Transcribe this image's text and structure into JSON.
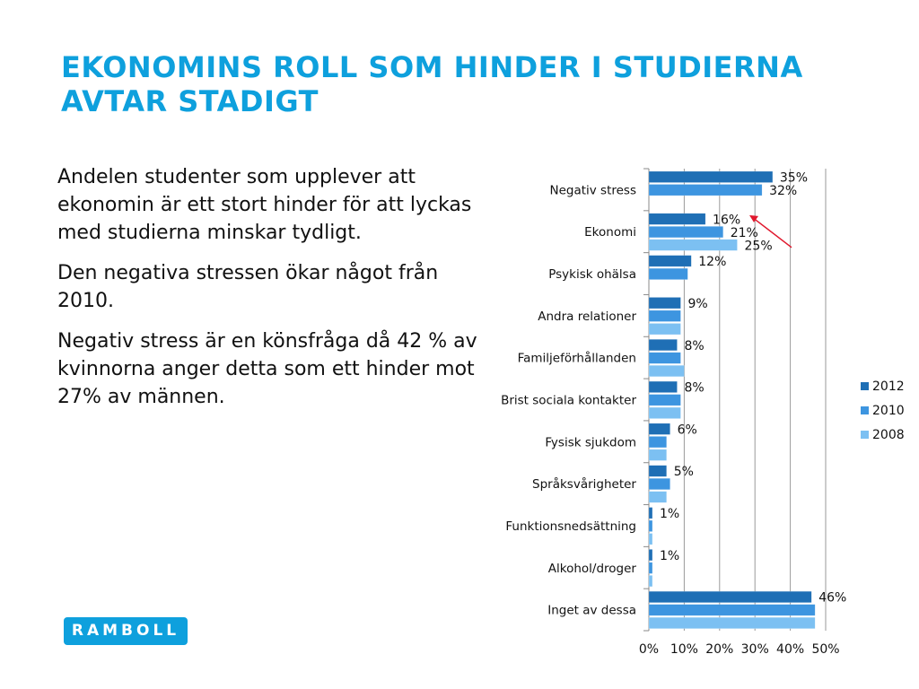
{
  "slide": {
    "title_lines": [
      "EKONOMINS ROLL SOM HINDER I STUDIERNA",
      "AVTAR STADIGT"
    ],
    "paragraphs": [
      "Andelen studenter som upplever att ekonomin är ett stort hinder för att lyckas med studierna minskar tydligt.",
      "Den negativa stressen ökar något från 2010.",
      "Negativ stress är en könsfråga då 42 % av kvinnorna anger detta som ett hinder mot 27% av männen."
    ],
    "logo_text": "RAMBOLL"
  },
  "colors": {
    "title": "#0ea0dd",
    "s2012": "#1f6fb5",
    "s2010": "#3d95e0",
    "s2008": "#7cc0f2",
    "arrow": "#e0182d"
  },
  "chart_data": {
    "type": "bar",
    "orientation": "horizontal",
    "title": "",
    "xlabel": "",
    "ylabel": "",
    "categories": [
      "Negativ stress",
      "Ekonomi",
      "Psykisk ohälsa",
      "Andra relationer",
      "Familjeförhållanden",
      "Brist sociala kontakter",
      "Fysisk sjukdom",
      "Språksvårigheter",
      "Funktionsnedsättning",
      "Alkohol/droger",
      "Inget av dessa"
    ],
    "series": [
      {
        "name": "2012",
        "values": [
          35,
          16,
          12,
          9,
          8,
          8,
          6,
          5,
          1,
          1,
          46
        ]
      },
      {
        "name": "2010",
        "values": [
          32,
          21,
          11,
          9,
          9,
          9,
          5,
          6,
          1,
          1,
          47
        ]
      },
      {
        "name": "2008",
        "values": [
          null,
          25,
          null,
          9,
          10,
          9,
          5,
          5,
          1,
          1,
          47
        ]
      }
    ],
    "data_labels": [
      {
        "category": "Negativ stress",
        "series": "2012",
        "text": "35%"
      },
      {
        "category": "Negativ stress",
        "series": "2010",
        "text": "32%"
      },
      {
        "category": "Ekonomi",
        "series": "2012",
        "text": "16%"
      },
      {
        "category": "Ekonomi",
        "series": "2010",
        "text": "21%"
      },
      {
        "category": "Ekonomi",
        "series": "2008",
        "text": "25%"
      },
      {
        "category": "Psykisk ohälsa",
        "series": "2012",
        "text": "12%"
      },
      {
        "category": "Andra relationer",
        "series": "2012",
        "text": "9%"
      },
      {
        "category": "Familjeförhållanden",
        "series": "2012",
        "text": "8%"
      },
      {
        "category": "Brist sociala kontakter",
        "series": "2012",
        "text": "8%"
      },
      {
        "category": "Fysisk sjukdom",
        "series": "2012",
        "text": "6%"
      },
      {
        "category": "Språksvårigheter",
        "series": "2012",
        "text": "5%"
      },
      {
        "category": "Funktionsnedsättning",
        "series": "2012",
        "text": "1%"
      },
      {
        "category": "Alkohol/droger",
        "series": "2012",
        "text": "1%"
      },
      {
        "category": "Inget av dessa",
        "series": "2012",
        "text": "46%"
      }
    ],
    "xlim": [
      0,
      50
    ],
    "xticks": [
      "0%",
      "10%",
      "20%",
      "30%",
      "40%",
      "50%"
    ],
    "grid": true,
    "legend": {
      "position": "right",
      "entries": [
        "2012",
        "2010",
        "2008"
      ]
    },
    "annotation": {
      "type": "arrow",
      "points_to": "Ekonomi 2012 label",
      "direction": "up-left"
    }
  }
}
